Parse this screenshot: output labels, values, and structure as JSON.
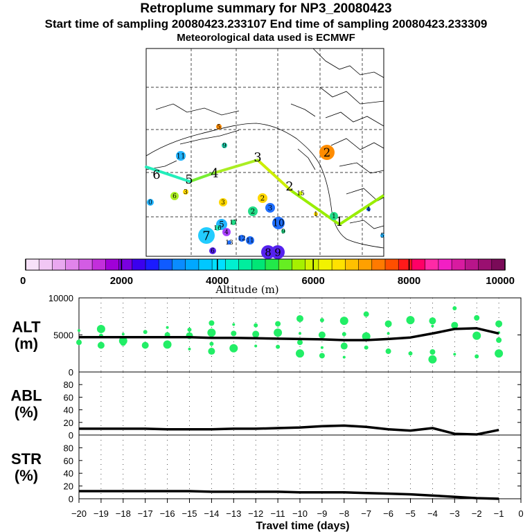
{
  "header": {
    "title": "Retroplume summary for NP3_20080423",
    "subtitle": "Start time of sampling 20080423.233107     End time of sampling 20080423.233309",
    "met": "Meteorological data used is ECMWF"
  },
  "map": {
    "track": [
      {
        "label": "1",
        "color": "#99ee00"
      },
      {
        "label": "2",
        "color": "#ccee00"
      },
      {
        "label": "3",
        "color": "#aaee22"
      },
      {
        "label": "4",
        "color": "#77ee33"
      },
      {
        "label": "5",
        "color": "#22eebb"
      },
      {
        "label": "6",
        "color": "#22eebb"
      }
    ],
    "clusters": [
      {
        "label": "2",
        "color": "#ff8c00"
      },
      {
        "label": "7",
        "color": "#22ccff"
      },
      {
        "label": "8",
        "color": "#5522ee"
      },
      {
        "label": "9",
        "color": "#5522ee"
      },
      {
        "label": "10",
        "color": "#1f6fff"
      },
      {
        "label": "11",
        "color": "#22b4ff"
      },
      {
        "label": "5",
        "color": "#22b4ff"
      },
      {
        "label": "2",
        "color": "#ffd700"
      },
      {
        "label": "3",
        "color": "#1f6fff"
      },
      {
        "label": "2",
        "color": "#22dd88"
      },
      {
        "label": "6",
        "color": "#aaee22"
      },
      {
        "label": "3",
        "color": "#ffd700"
      },
      {
        "label": "1",
        "color": "#22dd88"
      },
      {
        "label": "5",
        "color": "#ff8c00"
      },
      {
        "label": "4",
        "color": "#aa44ff"
      },
      {
        "label": "12",
        "color": "#1f6fff"
      },
      {
        "label": "11",
        "color": "#1f6fff"
      },
      {
        "label": "6",
        "color": "#5522ee"
      },
      {
        "label": "0",
        "color": "#22b4ff"
      },
      {
        "label": "9",
        "color": "#22ccaa"
      },
      {
        "label": "4",
        "color": "#1f6fff"
      },
      {
        "label": "5",
        "color": "#22b4ff"
      },
      {
        "label": "17",
        "color": "#22dd88"
      },
      {
        "label": "16",
        "color": "#22eebb"
      },
      {
        "label": "13",
        "color": "#1f6fff"
      },
      {
        "label": "15",
        "color": "#ccee00"
      },
      {
        "label": "3",
        "color": "#ffd700"
      },
      {
        "label": "1",
        "color": "#ffd700"
      },
      {
        "label": "9",
        "color": "#22dd88"
      }
    ]
  },
  "colorbar": {
    "label": "Altitude (m)",
    "min": 0,
    "max": 10000,
    "tick_labels": [
      "0",
      "2000",
      "4000",
      "6000",
      "8000",
      "10000"
    ],
    "colors": [
      "#f7e1f9",
      "#f1c7f4",
      "#e9a8ef",
      "#e084ea",
      "#d35ce4",
      "#c22fdb",
      "#a000d8",
      "#7a00e0",
      "#3b00ee",
      "#1b1bff",
      "#0f5bff",
      "#0a8cff",
      "#00a8ff",
      "#00c8ff",
      "#00e0ff",
      "#00f0d0",
      "#00ee9e",
      "#00e676",
      "#22e84a",
      "#66ee22",
      "#a6f000",
      "#d2f200",
      "#f2f200",
      "#ffe100",
      "#ffc000",
      "#ffa000",
      "#ff7a00",
      "#ff4f00",
      "#ff1a1a",
      "#ff0066",
      "#ff2aa6",
      "#f21fc4",
      "#d81ba0",
      "#b8158a",
      "#9a0f70",
      "#7a0a58"
    ]
  },
  "chart_data": [
    {
      "type": "line",
      "panel": "ALT",
      "ylabel": "ALT\n(m)",
      "ylim": [
        0,
        10000
      ],
      "yticks": [
        "10000",
        "5000",
        "0"
      ],
      "xlim": [
        -20,
        0
      ],
      "x": [
        -20,
        -19,
        -18,
        -17,
        -16,
        -15,
        -14,
        -13,
        -12,
        -11,
        -10,
        -9,
        -8,
        -7,
        -6,
        -5,
        -4,
        -3,
        -2,
        -1
      ],
      "series": [
        {
          "name": "mean altitude",
          "values": [
            4700,
            4700,
            4700,
            4700,
            4700,
            4700,
            4600,
            4600,
            4550,
            4500,
            4450,
            4400,
            4300,
            4300,
            4450,
            4650,
            5200,
            5800,
            5900,
            5200
          ]
        }
      ],
      "scatter": [
        {
          "x": -20,
          "y": 5600
        },
        {
          "x": -20,
          "y": 4000
        },
        {
          "x": -19,
          "y": 5800
        },
        {
          "x": -19,
          "y": 4900
        },
        {
          "x": -19,
          "y": 3600
        },
        {
          "x": -18,
          "y": 5100
        },
        {
          "x": -18,
          "y": 3900
        },
        {
          "x": -18,
          "y": 4200
        },
        {
          "x": -17,
          "y": 5400
        },
        {
          "x": -17,
          "y": 3600
        },
        {
          "x": -16,
          "y": 6000
        },
        {
          "x": -16,
          "y": 5000
        },
        {
          "x": -16,
          "y": 3700
        },
        {
          "x": -15,
          "y": 5700
        },
        {
          "x": -15,
          "y": 4900
        },
        {
          "x": -15,
          "y": 3100
        },
        {
          "x": -14,
          "y": 6600
        },
        {
          "x": -14,
          "y": 5300
        },
        {
          "x": -14,
          "y": 3800
        },
        {
          "x": -14,
          "y": 2800
        },
        {
          "x": -13,
          "y": 6400
        },
        {
          "x": -13,
          "y": 5200
        },
        {
          "x": -13,
          "y": 3200
        },
        {
          "x": -12,
          "y": 6300
        },
        {
          "x": -12,
          "y": 5100
        },
        {
          "x": -12,
          "y": 3500
        },
        {
          "x": -11,
          "y": 6500
        },
        {
          "x": -11,
          "y": 5300
        },
        {
          "x": -11,
          "y": 3400
        },
        {
          "x": -10,
          "y": 7200
        },
        {
          "x": -10,
          "y": 5200
        },
        {
          "x": -10,
          "y": 4000
        },
        {
          "x": -10,
          "y": 2500
        },
        {
          "x": -9,
          "y": 7000
        },
        {
          "x": -9,
          "y": 5000
        },
        {
          "x": -9,
          "y": 3300
        },
        {
          "x": -9,
          "y": 2200
        },
        {
          "x": -8,
          "y": 6900
        },
        {
          "x": -8,
          "y": 5100
        },
        {
          "x": -8,
          "y": 3500
        },
        {
          "x": -8,
          "y": 2000
        },
        {
          "x": -7,
          "y": 7800
        },
        {
          "x": -7,
          "y": 4800
        },
        {
          "x": -7,
          "y": 3300
        },
        {
          "x": -6,
          "y": 6500
        },
        {
          "x": -6,
          "y": 5200
        },
        {
          "x": -6,
          "y": 2800
        },
        {
          "x": -5,
          "y": 7000
        },
        {
          "x": -5,
          "y": 2500
        },
        {
          "x": -4,
          "y": 6900
        },
        {
          "x": -4,
          "y": 6200
        },
        {
          "x": -4,
          "y": 2700
        },
        {
          "x": -4,
          "y": 1700
        },
        {
          "x": -3,
          "y": 8600
        },
        {
          "x": -3,
          "y": 6300
        },
        {
          "x": -3,
          "y": 2400
        },
        {
          "x": -2,
          "y": 7300
        },
        {
          "x": -2,
          "y": 4900
        },
        {
          "x": -2,
          "y": 2100
        },
        {
          "x": -1,
          "y": 6500
        },
        {
          "x": -1,
          "y": 5300
        },
        {
          "x": -1,
          "y": 4300
        },
        {
          "x": -1,
          "y": 2500
        }
      ]
    },
    {
      "type": "line",
      "panel": "ABL",
      "ylabel": "ABL\n(%)",
      "ylim": [
        0,
        100
      ],
      "yticks": [
        "80",
        "60",
        "40",
        "20",
        "0"
      ],
      "xlim": [
        -20,
        0
      ],
      "x": [
        -20,
        -19,
        -18,
        -17,
        -16,
        -15,
        -14,
        -13,
        -12,
        -11,
        -10,
        -9,
        -8,
        -7,
        -6,
        -5,
        -4,
        -3,
        -2,
        -1
      ],
      "series": [
        {
          "name": "ABL fraction",
          "values": [
            10,
            10,
            10,
            10,
            9,
            9,
            9,
            10,
            10,
            11,
            12,
            14,
            15,
            13,
            9,
            7,
            11,
            2,
            1,
            8
          ]
        }
      ]
    },
    {
      "type": "line",
      "panel": "STR",
      "ylabel": "STR\n(%)",
      "ylim": [
        0,
        100
      ],
      "yticks": [
        "80",
        "60",
        "40",
        "20",
        "0"
      ],
      "xlim": [
        -20,
        0
      ],
      "x": [
        -20,
        -19,
        -18,
        -17,
        -16,
        -15,
        -14,
        -13,
        -12,
        -11,
        -10,
        -9,
        -8,
        -7,
        -6,
        -5,
        -4,
        -3,
        -2,
        -1
      ],
      "series": [
        {
          "name": "stratospheric fraction",
          "values": [
            12,
            12,
            12,
            12,
            12,
            12,
            11,
            11,
            11,
            11,
            10,
            10,
            10,
            9,
            8,
            7,
            5,
            3,
            1,
            0
          ]
        }
      ]
    }
  ],
  "xaxis": {
    "title": "Travel time (days)",
    "tick_labels": [
      "−20",
      "−19",
      "−18",
      "−17",
      "−16",
      "−15",
      "−14",
      "−13",
      "−12",
      "−11",
      "−10",
      "−9",
      "−8",
      "−7",
      "−6",
      "−5",
      "−4",
      "−3",
      "−2",
      "−1",
      "0"
    ]
  }
}
